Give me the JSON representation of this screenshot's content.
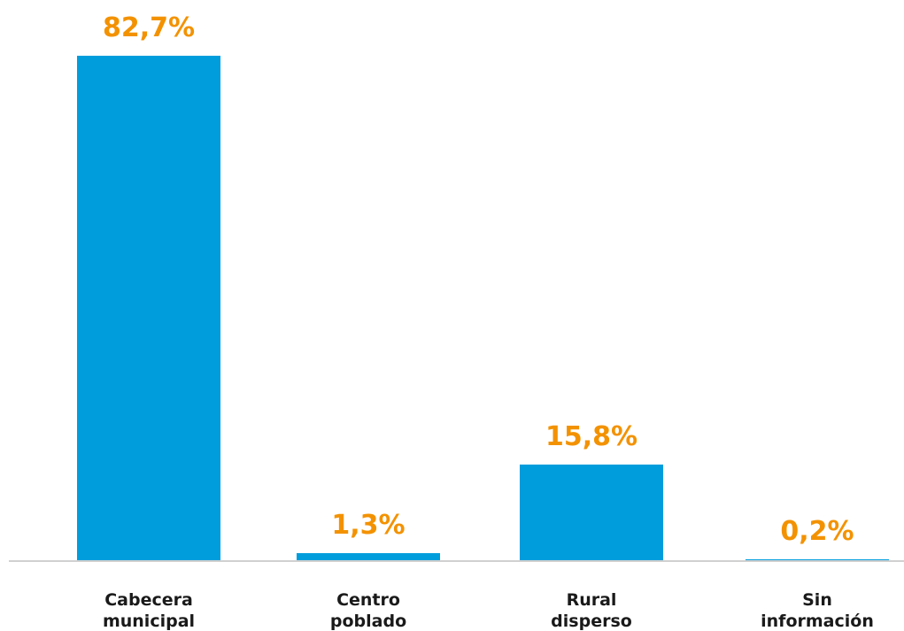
{
  "chart_data": {
    "type": "bar",
    "categories": [
      [
        "Cabecera",
        "municipal"
      ],
      [
        "Centro",
        "poblado"
      ],
      [
        "Rural",
        "disperso"
      ],
      [
        "Sin",
        "información"
      ]
    ],
    "values": [
      82.7,
      1.3,
      15.8,
      0.2
    ],
    "value_labels": [
      "82,7%",
      "1,3%",
      "15,8%",
      "0,2%"
    ],
    "title": "",
    "xlabel": "",
    "ylabel": "",
    "ylim": [
      0,
      82.7
    ],
    "grid": false,
    "legend": "none",
    "colors": {
      "bar": "#009ddc",
      "value_label": "#f39200",
      "axis": "#d0d0d0"
    }
  }
}
